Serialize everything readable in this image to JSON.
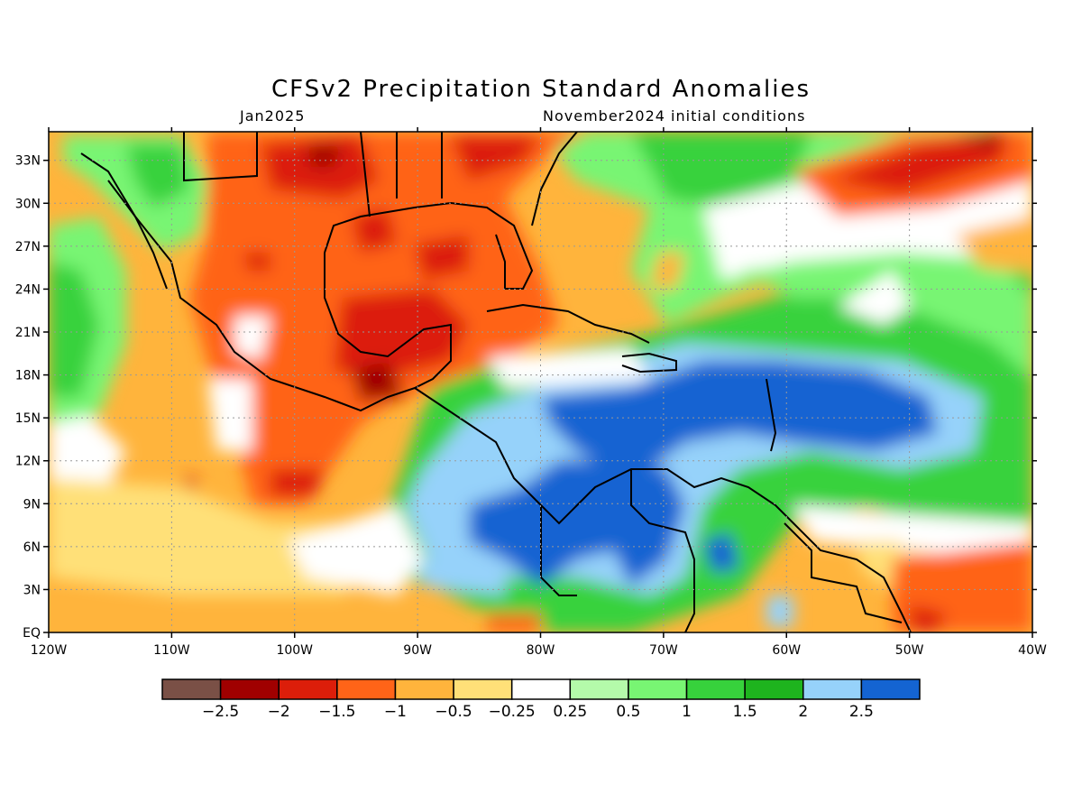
{
  "title": "CFSv2 Precipitation Standard Anomalies",
  "subtitle_left": "Jan2025",
  "subtitle_right": "November2024 initial conditions",
  "map": {
    "lon_range": [
      -120,
      -40
    ],
    "lat_range": [
      0,
      35
    ],
    "x_tick_labels": [
      "120W",
      "110W",
      "100W",
      "90W",
      "80W",
      "70W",
      "60W",
      "50W",
      "40W"
    ],
    "y_tick_labels": [
      "EQ",
      "3N",
      "6N",
      "9N",
      "12N",
      "15N",
      "18N",
      "21N",
      "24N",
      "27N",
      "30N",
      "33N"
    ],
    "grid": "dotted"
  },
  "colorbar": {
    "colors": [
      "#7a5046",
      "#a00000",
      "#dc1e0a",
      "#ff6418",
      "#ffb43c",
      "#ffe078",
      "#ffffff",
      "#b4faaa",
      "#78f573",
      "#37d23c",
      "#1eb41e",
      "#96d2fa",
      "#1464d2"
    ],
    "labels": [
      "−2.5",
      "−2",
      "−1.5",
      "−1",
      "−0.5",
      "−0.25",
      "0.25",
      "0.5",
      "1",
      "1.5",
      "2",
      "2.5"
    ]
  }
}
